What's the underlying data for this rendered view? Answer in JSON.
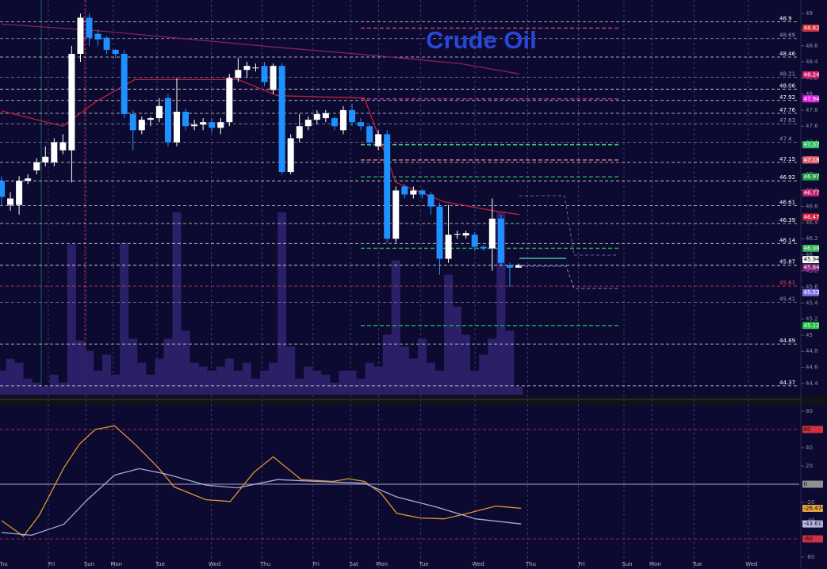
{
  "chart_data": {
    "type": "candlestick",
    "title": "Crude Oil",
    "ylim": [
      44.26,
      49.17
    ],
    "yticks": [
      49,
      48.8,
      48.6,
      48.4,
      48.2,
      48,
      47.8,
      47.6,
      47.4,
      47.2,
      47,
      46.8,
      46.6,
      46.4,
      46.2,
      46,
      45.8,
      45.6,
      45.4,
      45.2,
      45,
      44.8,
      44.6,
      44.4
    ],
    "up_color": "#ffffff",
    "down_color": "#1e90ff",
    "volume_color": "#2b2068",
    "x_labels": [
      {
        "label": "Thu",
        "x": 0.1
      },
      {
        "label": "Fri",
        "x": 5.7
      },
      {
        "label": "Sun",
        "x": 10.0
      },
      {
        "label": "Mon",
        "x": 13.1
      },
      {
        "label": "Tue",
        "x": 18.1
      },
      {
        "label": "Wed",
        "x": 24.3
      },
      {
        "label": "Thu",
        "x": 30.1
      },
      {
        "label": "Fri",
        "x": 35.9
      },
      {
        "label": "Sat",
        "x": 40.2
      },
      {
        "label": "Mon",
        "x": 43.4
      },
      {
        "label": "Tue",
        "x": 48.2
      },
      {
        "label": "Wed",
        "x": 54.4
      },
      {
        "label": "Thu",
        "x": 60.4
      },
      {
        "label": "Fri",
        "x": 66.2
      },
      {
        "label": "Sun",
        "x": 71.4
      },
      {
        "label": "Mon",
        "x": 74.6
      },
      {
        "label": "Tue",
        "x": 79.4
      },
      {
        "label": "Wed",
        "x": 85.6
      }
    ],
    "candles": {
      "open": [
        46.92,
        46.62,
        46.62,
        46.92,
        47.05,
        47.15,
        47.15,
        47.3,
        47.3,
        48.5,
        48.95,
        48.75,
        48.7,
        48.55,
        48.5,
        47.75,
        47.55,
        47.68,
        47.7,
        47.95,
        47.4,
        47.78,
        47.6,
        47.62,
        47.65,
        47.58,
        47.65,
        48.2,
        48.3,
        48.32,
        48.35,
        48.05,
        48.35,
        47.03,
        47.45,
        47.6,
        47.68,
        47.7,
        47.7,
        47.55,
        47.8,
        47.65,
        47.6,
        47.35,
        47.5,
        46.2,
        46.85,
        46.75,
        46.8,
        46.75,
        46.6,
        45.95,
        46.25,
        46.24,
        46.25,
        46.1,
        46.08,
        46.45,
        45.87,
        45.84
      ],
      "high": [
        46.98,
        46.78,
        46.98,
        47.0,
        47.2,
        47.35,
        47.45,
        47.5,
        48.6,
        49.0,
        49.0,
        48.8,
        48.72,
        48.56,
        48.55,
        47.8,
        47.72,
        47.72,
        47.95,
        48.0,
        48.2,
        47.82,
        47.68,
        47.7,
        47.7,
        47.7,
        48.25,
        48.45,
        48.4,
        48.38,
        48.4,
        48.38,
        48.38,
        47.5,
        47.75,
        47.72,
        47.8,
        47.8,
        47.72,
        47.85,
        47.88,
        47.7,
        47.62,
        47.55,
        47.55,
        46.85,
        46.88,
        46.85,
        46.82,
        46.78,
        46.65,
        46.62,
        46.3,
        46.3,
        46.28,
        46.12,
        46.7,
        46.5,
        45.9,
        45.89
      ],
      "low": [
        46.62,
        46.55,
        46.5,
        46.88,
        47.0,
        47.1,
        47.1,
        47.25,
        46.9,
        48.4,
        48.6,
        48.6,
        48.5,
        48.45,
        47.7,
        47.3,
        47.5,
        47.6,
        47.65,
        47.35,
        47.35,
        47.55,
        47.55,
        47.55,
        47.52,
        47.5,
        47.6,
        48.15,
        48.2,
        48.28,
        48.1,
        48.0,
        47.0,
        47.0,
        47.4,
        47.55,
        47.62,
        47.65,
        47.55,
        47.5,
        47.6,
        47.55,
        47.35,
        47.3,
        46.15,
        46.15,
        46.7,
        46.7,
        46.7,
        46.5,
        45.75,
        45.9,
        46.2,
        46.2,
        46.05,
        46.05,
        45.8,
        45.85,
        45.6,
        45.84
      ],
      "close": [
        46.72,
        46.7,
        46.92,
        46.95,
        47.15,
        47.22,
        47.4,
        47.4,
        48.5,
        48.95,
        48.7,
        48.68,
        48.55,
        48.5,
        47.75,
        47.55,
        47.68,
        47.7,
        47.85,
        47.4,
        47.78,
        47.6,
        47.62,
        47.65,
        47.58,
        47.65,
        48.2,
        48.3,
        48.35,
        48.33,
        48.15,
        48.35,
        47.03,
        47.45,
        47.6,
        47.68,
        47.75,
        47.76,
        47.6,
        47.8,
        47.65,
        47.6,
        47.4,
        47.5,
        46.2,
        46.8,
        46.75,
        46.8,
        46.75,
        46.6,
        45.95,
        46.25,
        46.26,
        46.27,
        46.1,
        46.08,
        46.45,
        45.9,
        45.84,
        45.87
      ],
      "volume": [
        30,
        45,
        40,
        20,
        15,
        10,
        25,
        15,
        188,
        68,
        55,
        30,
        50,
        25,
        190,
        70,
        40,
        25,
        45,
        70,
        228,
        80,
        40,
        35,
        30,
        35,
        45,
        30,
        40,
        20,
        30,
        40,
        228,
        60,
        20,
        35,
        30,
        25,
        15,
        30,
        30,
        20,
        40,
        35,
        75,
        168,
        60,
        45,
        70,
        40,
        30,
        150,
        110,
        75,
        30,
        50,
        70,
        228,
        80,
        10
      ]
    },
    "moving_averages": [
      {
        "color": "#8a1f63",
        "x": [
          0,
          10.7,
          31.5,
          40.5,
          52.3,
          59.1
        ],
        "values": [
          48.87,
          48.79,
          48.58,
          48.5,
          48.38,
          48.25
        ]
      },
      {
        "color": "#c0203a",
        "x": [
          0,
          7,
          10.7,
          15.2,
          27,
          31.5,
          41.4,
          45,
          50.5,
          56,
          59.1
        ],
        "values": [
          47.79,
          47.6,
          47.9,
          48.18,
          48.18,
          47.98,
          47.95,
          46.9,
          46.66,
          46.55,
          46.5
        ]
      }
    ],
    "levels": [
      {
        "value": 48.9,
        "color": "#ffffff"
      },
      {
        "value": 48.69,
        "color": "#9a98b8"
      },
      {
        "value": 48.46,
        "color": "#ffffff"
      },
      {
        "value": 48.21,
        "color": "#9a98b8"
      },
      {
        "value": 48.06,
        "color": "#ffffff"
      },
      {
        "value": 47.92,
        "color": "#ffffff"
      },
      {
        "value": 47.76,
        "color": "#ffffff"
      },
      {
        "value": 47.63,
        "color": "#9a98b8"
      },
      {
        "value": 47.4,
        "color": "#9a98b8"
      },
      {
        "value": 47.15,
        "color": "#ffffff"
      },
      {
        "value": 46.92,
        "color": "#ffffff"
      },
      {
        "value": 46.61,
        "color": "#ffffff"
      },
      {
        "value": 46.39,
        "color": "#ffffff"
      },
      {
        "value": 46.14,
        "color": "#ffffff"
      },
      {
        "value": 45.87,
        "color": "#ffffff"
      },
      {
        "value": 45.61,
        "color": "#e04050"
      },
      {
        "value": 45.41,
        "color": "#9a98b8"
      },
      {
        "value": 44.89,
        "color": "#ffffff"
      },
      {
        "value": 44.37,
        "color": "#ffffff"
      }
    ],
    "zones": [
      {
        "value": 48.82,
        "color": "#c0406a"
      },
      {
        "value": 47.94,
        "color": "#b030a0"
      },
      {
        "value": 47.37,
        "color": "#40e080"
      },
      {
        "value": 47.18,
        "color": "#e07080"
      },
      {
        "value": 46.97,
        "color": "#20a050"
      },
      {
        "value": 46.08,
        "color": "#20a050"
      },
      {
        "value": 45.12,
        "color": "#20a050"
      }
    ],
    "price_tags": [
      {
        "value": 48.82,
        "color": "#d0303a"
      },
      {
        "value": 48.24,
        "color": "#d0206a"
      },
      {
        "value": 47.94,
        "color": "#e020e0"
      },
      {
        "value": 47.37,
        "color": "#30c060"
      },
      {
        "value": 47.18,
        "color": "#e06070"
      },
      {
        "value": 46.97,
        "color": "#20a040"
      },
      {
        "value": 46.77,
        "color": "#c02070"
      },
      {
        "value": 46.47,
        "color": "#d02040"
      },
      {
        "value": 46.08,
        "color": "#30b050"
      },
      {
        "value": 45.94,
        "color": "#ffffff"
      },
      {
        "value": 45.84,
        "color": "#80207a"
      },
      {
        "value": 45.53,
        "color": "#8070e0"
      },
      {
        "value": 45.12,
        "color": "#20c040"
      }
    ],
    "oscillator": {
      "ylim": [
        -93,
        86
      ],
      "yticks": [
        80,
        40,
        20,
        -20,
        -40,
        -80
      ],
      "series": [
        {
          "color": "#e0962e",
          "x": [
            0,
            2.5,
            4.3,
            7.1,
            8.9,
            10.7,
            12.9,
            15.2,
            17.9,
            19.7,
            23.3,
            26.1,
            28.8,
            31,
            34.2,
            37.8,
            39.6,
            41.4,
            43.3,
            45.1,
            47.8,
            50.5,
            53.2,
            56.4,
            59.3
          ],
          "values": [
            -40,
            -57,
            -34,
            18,
            44,
            60,
            64,
            44,
            18,
            -3,
            -17,
            -19,
            13,
            30,
            5,
            3,
            6,
            3,
            -10,
            -32,
            -37,
            -38,
            -32,
            -24,
            -26.474
          ]
        },
        {
          "color": "#a8a8e0",
          "x": [
            0,
            3.4,
            7.1,
            9.8,
            12.9,
            15.7,
            18.8,
            23.3,
            26.9,
            31.5,
            36,
            41.4,
            45.1,
            49.6,
            54.1,
            59.3
          ],
          "values": [
            -53,
            -56,
            -44,
            -17,
            10,
            17,
            11,
            -1,
            -4,
            5,
            3,
            1,
            -14,
            -25,
            -38,
            -43.617
          ]
        }
      ],
      "ref_lines": [
        {
          "value": 60,
          "color": "#c03040"
        },
        {
          "value": 0,
          "color": "#8a8aa0"
        },
        {
          "value": -60,
          "color": "#c03040"
        }
      ],
      "tags": [
        {
          "value": 60,
          "color": "#d03040"
        },
        {
          "value": 0,
          "color": "#909090"
        },
        {
          "value": -26.474,
          "color": "#e0a040"
        },
        {
          "value": -43.617,
          "color": "#b8b8e8"
        },
        {
          "value": -60,
          "color": "#d03040"
        }
      ]
    }
  }
}
